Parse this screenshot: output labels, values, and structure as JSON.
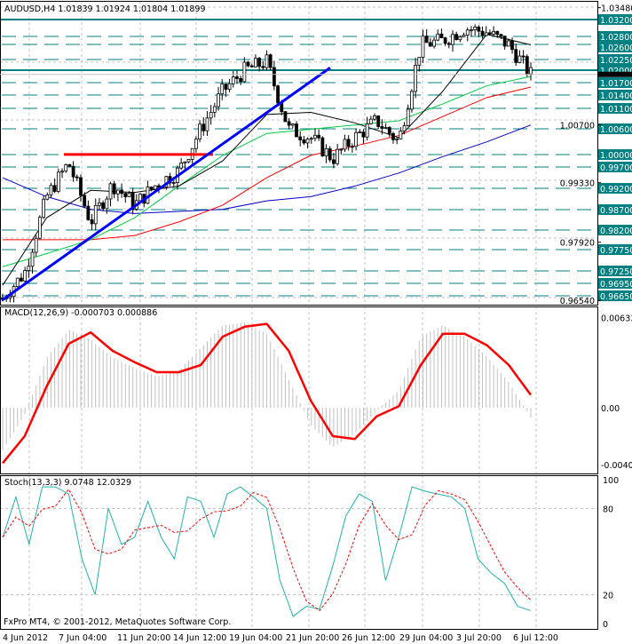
{
  "header": {
    "symbol": "AUDUSD,H4",
    "ohlc": "1.01839 1.01924 1.01804 1.01899"
  },
  "footer": {
    "copyright": "FxPro MT4, © 2001-2012, MetaQuotes Software Corp."
  },
  "colors": {
    "level": "#008080",
    "trendline": "#0000ff",
    "resistance": "#ff0000",
    "macd_signal": "#ff0000",
    "macd_hist": "#c0c0c0",
    "stoch_main": "#20b2aa",
    "stoch_signal": "#ff0000",
    "ma_black": "#000000",
    "ma_green": "#00cc44",
    "ma_red": "#ff0000",
    "ma_blue": "#0000cc"
  },
  "chart_data": [
    {
      "type": "candlestick",
      "title": "AUDUSD,H4",
      "ylim": [
        0.9654,
        1.0348
      ],
      "x_ticks": [
        "4 Jun 2012",
        "7 Jun 04:00",
        "11 Jun 20:00",
        "14 Jun 12:00",
        "19 Jun 04:00",
        "21 Jun 20:00",
        "26 Jun 12:00",
        "29 Jun 04:00",
        "3 Jul 20:00",
        "6 Jul 12:00"
      ],
      "y_ticks": [
        "1.03480",
        "1.00700",
        "0.99330",
        "0.97920",
        "0.96540"
      ],
      "current_price": "1.01899",
      "levels": [
        {
          "label": "1.03200",
          "solid": true
        },
        {
          "label": "1.02800",
          "solid": false
        },
        {
          "label": "1.02600",
          "solid": false
        },
        {
          "label": "1.02250",
          "solid": false
        },
        {
          "label": "1.02000",
          "solid": true
        },
        {
          "label": "1.01700",
          "solid": false
        },
        {
          "label": "1.01400",
          "solid": false
        },
        {
          "label": "1.01100",
          "solid": false
        },
        {
          "label": "1.00600",
          "solid": false
        },
        {
          "label": "1.00000",
          "solid": false
        },
        {
          "label": "0.99700",
          "solid": false
        },
        {
          "label": "0.99200",
          "solid": false
        },
        {
          "label": "0.98700",
          "solid": false
        },
        {
          "label": "0.98200",
          "solid": false
        },
        {
          "label": "0.97750",
          "solid": false
        },
        {
          "label": "0.97250",
          "solid": false
        },
        {
          "label": "0.96950",
          "solid": false
        },
        {
          "label": "0.96650",
          "solid": false
        }
      ],
      "close_approx": [
        0.966,
        0.972,
        0.99,
        0.998,
        0.984,
        0.993,
        0.988,
        0.993,
        0.996,
        1.006,
        1.015,
        1.02,
        1.022,
        1.006,
        1.004,
        0.999,
        1.004,
        1.008,
        1.003,
        1.026,
        1.027,
        1.03,
        1.029,
        1.026,
        1.019
      ],
      "moving_averages": {
        "black": [
          0.969,
          0.985,
          0.9915,
          0.991,
          0.9925,
          0.9985,
          1.0095,
          1.01,
          1.0075,
          1.004,
          1.015,
          1.0285,
          1.026
        ],
        "green": [
          0.9734,
          0.9765,
          0.9798,
          0.985,
          0.9925,
          0.9998,
          1.005,
          1.006,
          1.007,
          1.008,
          1.012,
          1.0163,
          1.0185
        ],
        "red": [
          0.9798,
          0.9798,
          0.9798,
          0.9808,
          0.984,
          0.988,
          0.9945,
          0.9998,
          1.002,
          1.0045,
          1.009,
          1.0135,
          1.016
        ],
        "blue": [
          0.9945,
          0.99,
          0.987,
          0.986,
          0.9865,
          0.987,
          0.989,
          0.99,
          0.9925,
          0.9956,
          0.9995,
          1.003,
          1.007
        ]
      },
      "resistance_line": {
        "price": 1.0
      },
      "trend_line": {
        "from_price": 0.9654,
        "to_price": 1.021
      }
    },
    {
      "type": "line",
      "title": "MACD(12,26,9) -0.000703 0.000886",
      "y_ticks": [
        "0.00633",
        "0.00",
        "-0.00401"
      ],
      "ylim": [
        -0.00401,
        0.00633
      ],
      "signal": [
        -0.0039,
        -0.002,
        0.0015,
        0.0045,
        0.0053,
        0.004,
        0.0032,
        0.0025,
        0.0025,
        0.003,
        0.005,
        0.0057,
        0.0059,
        0.004,
        0.0005,
        -0.002,
        -0.0022,
        -0.0006,
        0.0001,
        0.003,
        0.0052,
        0.0052,
        0.0044,
        0.003,
        0.0009
      ],
      "histogram": [
        -0.003,
        -0.0005,
        0.0035,
        0.0055,
        0.0048,
        0.0035,
        0.0028,
        0.0022,
        0.0026,
        0.0042,
        0.0058,
        0.006,
        0.0052,
        0.002,
        -0.0012,
        -0.0028,
        -0.0018,
        -0.0002,
        0.0012,
        0.005,
        0.0058,
        0.005,
        0.0036,
        0.0018,
        -0.0007
      ]
    },
    {
      "type": "line",
      "title": "Stoch(13,3,3) 9.0748 12.0329",
      "y_ticks": [
        "100",
        "80",
        "20",
        "0"
      ],
      "ylim": [
        0,
        100
      ],
      "main": [
        60,
        88,
        55,
        95,
        95,
        90,
        45,
        20,
        80,
        55,
        60,
        85,
        60,
        45,
        88,
        85,
        60,
        90,
        95,
        88,
        80,
        30,
        5,
        12,
        10,
        40,
        75,
        90,
        85,
        30,
        60,
        95,
        92,
        90,
        88,
        80,
        45,
        35,
        28,
        12,
        9
      ]
    }
  ]
}
